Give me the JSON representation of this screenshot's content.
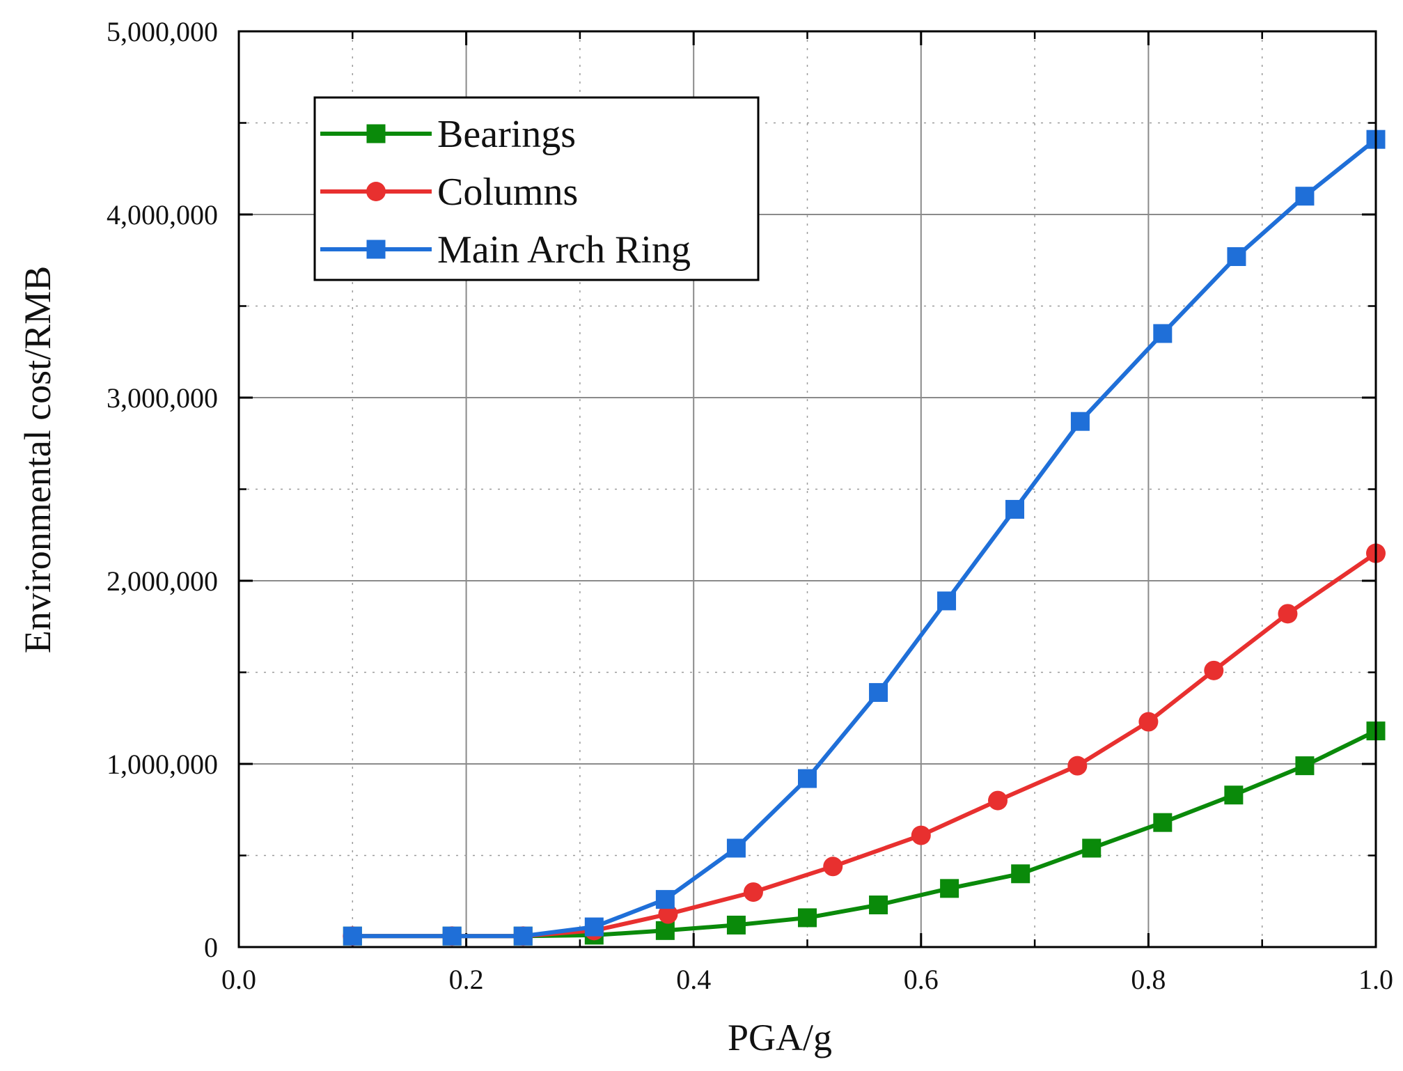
{
  "chart_data": {
    "type": "line",
    "title": "",
    "xlabel": "PGA/g",
    "ylabel": "Environmental cost/RMB",
    "xlim": [
      0.0,
      1.0
    ],
    "ylim": [
      0,
      5000000
    ],
    "x_ticks": [
      0.0,
      0.2,
      0.4,
      0.6,
      0.8,
      1.0
    ],
    "x_tick_labels": [
      "0.0",
      "0.2",
      "0.4",
      "0.6",
      "0.8",
      "1.0"
    ],
    "y_ticks": [
      0,
      1000000,
      2000000,
      3000000,
      4000000,
      5000000
    ],
    "y_tick_labels": [
      "0",
      "1,000,000",
      "2,000,000",
      "3,000,000",
      "4,000,000",
      "5,000,000"
    ],
    "grid": true,
    "legend_position": "top-left",
    "series": [
      {
        "name": "Bearings",
        "color": "#0a8a0a",
        "marker": "square",
        "x": [
          0.1,
          0.1875,
          0.25,
          0.3125,
          0.375,
          0.4375,
          0.5,
          0.5625,
          0.625,
          0.6875,
          0.75,
          0.8125,
          0.875,
          0.9375,
          1.0
        ],
        "y": [
          60000,
          60000,
          60000,
          65000,
          90000,
          120000,
          160000,
          230000,
          320000,
          400000,
          540000,
          680000,
          830000,
          990000,
          1180000
        ]
      },
      {
        "name": "Columns",
        "color": "#e8302f",
        "marker": "circle",
        "x": [
          0.1,
          0.1875,
          0.25,
          0.3125,
          0.3775,
          0.4525,
          0.5225,
          0.6,
          0.6675,
          0.7375,
          0.8,
          0.8575,
          0.9225,
          1.0
        ],
        "y": [
          60000,
          60000,
          60000,
          90000,
          180000,
          300000,
          440000,
          610000,
          800000,
          990000,
          1230000,
          1510000,
          1820000,
          2150000
        ]
      },
      {
        "name": "Main Arch Ring",
        "color": "#1f6fd8",
        "marker": "square",
        "x": [
          0.1,
          0.1875,
          0.25,
          0.3125,
          0.375,
          0.4375,
          0.5,
          0.5625,
          0.6225,
          0.6825,
          0.74,
          0.8125,
          0.8775,
          0.9375,
          1.0
        ],
        "y": [
          60000,
          60000,
          60000,
          110000,
          260000,
          540000,
          920000,
          1390000,
          1890000,
          2390000,
          2870000,
          3350000,
          3770000,
          4100000,
          4410000
        ]
      }
    ]
  }
}
